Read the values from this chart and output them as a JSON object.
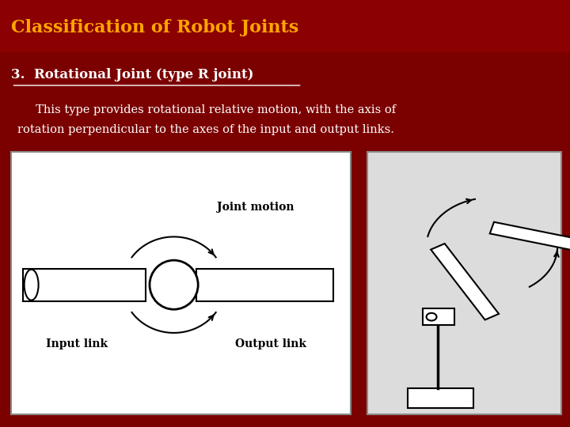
{
  "title": "Classification of Robot Joints",
  "title_color": "#FFA500",
  "header_bg": "#8B0000",
  "slide_bg": "#7B0000",
  "subtitle": "3.  Rotational Joint (type R joint)",
  "body_line1": "     This type provides rotational relative motion, with the axis of",
  "body_line2": "rotation perpendicular to the axes of the input and output links.",
  "text_color": "#FFFFFF",
  "label_input": "Input link",
  "label_output": "Output link",
  "label_joint": "Joint motion"
}
